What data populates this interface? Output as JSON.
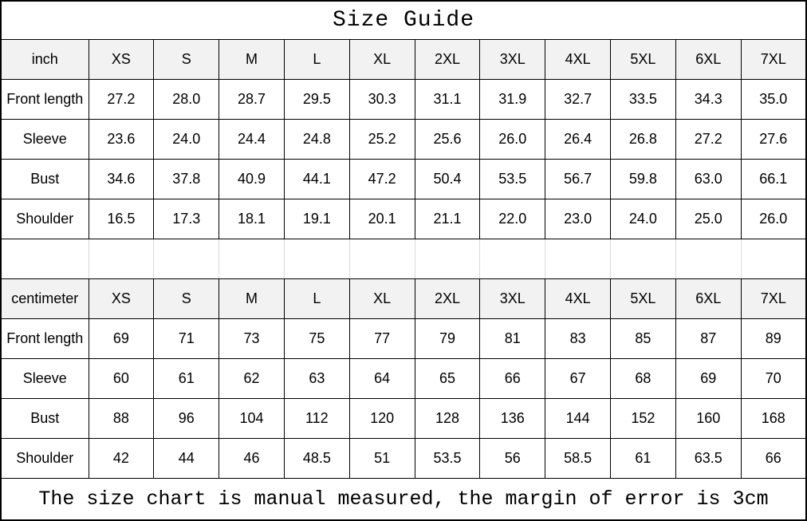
{
  "title": "Size Guide",
  "footer_note": "The size chart is manual measured, the margin of error is 3cm",
  "colors": {
    "border": "#000000",
    "header_bg": "#f2f2f2",
    "separator_line": "#d9d9d9",
    "text": "#000000",
    "background": "#ffffff"
  },
  "size_tables": [
    {
      "unit": "inch",
      "sizes": [
        "XS",
        "S",
        "M",
        "L",
        "XL",
        "2XL",
        "3XL",
        "4XL",
        "5XL",
        "6XL",
        "7XL"
      ],
      "rows": [
        {
          "label": "Front length",
          "values": [
            "27.2",
            "28.0",
            "28.7",
            "29.5",
            "30.3",
            "31.1",
            "31.9",
            "32.7",
            "33.5",
            "34.3",
            "35.0"
          ]
        },
        {
          "label": "Sleeve",
          "values": [
            "23.6",
            "24.0",
            "24.4",
            "24.8",
            "25.2",
            "25.6",
            "26.0",
            "26.4",
            "26.8",
            "27.2",
            "27.6"
          ]
        },
        {
          "label": "Bust",
          "values": [
            "34.6",
            "37.8",
            "40.9",
            "44.1",
            "47.2",
            "50.4",
            "53.5",
            "56.7",
            "59.8",
            "63.0",
            "66.1"
          ]
        },
        {
          "label": "Shoulder",
          "values": [
            "16.5",
            "17.3",
            "18.1",
            "19.1",
            "20.1",
            "21.1",
            "22.0",
            "23.0",
            "24.0",
            "25.0",
            "26.0"
          ]
        }
      ]
    },
    {
      "unit": "centimeter",
      "sizes": [
        "XS",
        "S",
        "M",
        "L",
        "XL",
        "2XL",
        "3XL",
        "4XL",
        "5XL",
        "6XL",
        "7XL"
      ],
      "rows": [
        {
          "label": "Front length",
          "values": [
            "69",
            "71",
            "73",
            "75",
            "77",
            "79",
            "81",
            "83",
            "85",
            "87",
            "89"
          ]
        },
        {
          "label": "Sleeve",
          "values": [
            "60",
            "61",
            "62",
            "63",
            "64",
            "65",
            "66",
            "67",
            "68",
            "69",
            "70"
          ]
        },
        {
          "label": "Bust",
          "values": [
            "88",
            "96",
            "104",
            "112",
            "120",
            "128",
            "136",
            "144",
            "152",
            "160",
            "168"
          ]
        },
        {
          "label": "Shoulder",
          "values": [
            "42",
            "44",
            "46",
            "48.5",
            "51",
            "53.5",
            "56",
            "58.5",
            "61",
            "63.5",
            "66"
          ]
        }
      ]
    }
  ]
}
